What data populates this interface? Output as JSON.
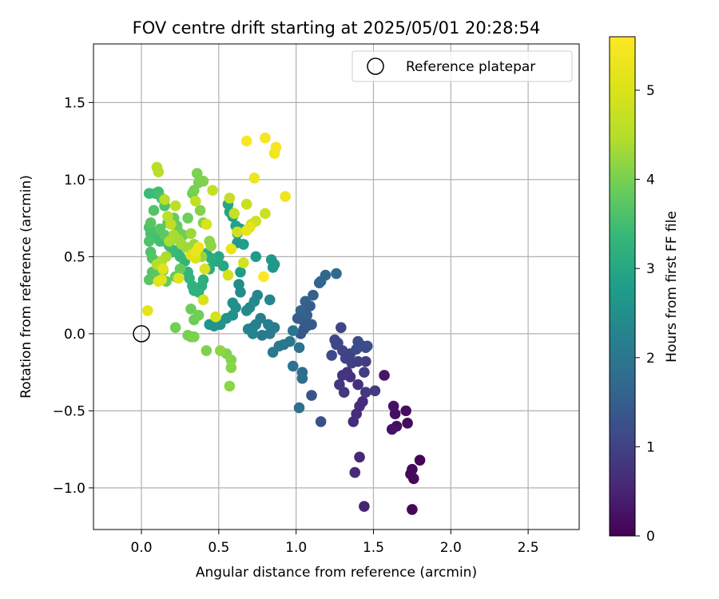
{
  "chart_data": {
    "type": "scatter",
    "title": "FOV centre drift starting at 2025/05/01 20:28:54",
    "xlabel": "Angular distance from reference (arcmin)",
    "ylabel": "Rotation from reference (arcmin)",
    "xlim": [
      -0.31,
      2.83
    ],
    "ylim": [
      -1.27,
      1.88
    ],
    "xticks": [
      0.0,
      0.5,
      1.0,
      1.5,
      2.0,
      2.5
    ],
    "xtick_labels": [
      "0.0",
      "0.5",
      "1.0",
      "1.5",
      "2.0",
      "2.5"
    ],
    "yticks": [
      -1.0,
      -0.5,
      0.0,
      0.5,
      1.0,
      1.5
    ],
    "ytick_labels": [
      "−1.0",
      "−0.5",
      "0.0",
      "0.5",
      "1.0",
      "1.5"
    ],
    "grid": true,
    "legend": {
      "placement": "top-right",
      "entries": [
        "Reference platepar"
      ]
    },
    "reference_point": {
      "name": "Reference platepar",
      "x": 0.0,
      "y": 0.0,
      "marker": "open-circle"
    },
    "colorbar": {
      "label": "Hours from first FF file",
      "range": [
        0,
        5.6
      ],
      "ticks": [
        0,
        1,
        2,
        3,
        4,
        5
      ],
      "colormap": "viridis"
    },
    "points": [
      [
        1.8,
        -0.82,
        0.05
      ],
      [
        1.75,
        -1.14,
        0.08
      ],
      [
        1.76,
        -0.94,
        0.1
      ],
      [
        1.74,
        -0.91,
        0.1
      ],
      [
        1.75,
        -0.88,
        0.12
      ],
      [
        1.72,
        -0.58,
        0.15
      ],
      [
        1.71,
        -0.5,
        0.18
      ],
      [
        1.65,
        -0.6,
        0.2
      ],
      [
        1.64,
        -0.52,
        0.22
      ],
      [
        1.63,
        -0.47,
        0.25
      ],
      [
        1.62,
        -0.62,
        0.25
      ],
      [
        1.57,
        -0.27,
        0.3
      ],
      [
        1.44,
        -1.12,
        0.5
      ],
      [
        1.41,
        -0.8,
        0.55
      ],
      [
        1.38,
        -0.9,
        0.6
      ],
      [
        1.43,
        -0.44,
        0.6
      ],
      [
        1.41,
        -0.47,
        0.62
      ],
      [
        1.37,
        -0.57,
        0.65
      ],
      [
        1.39,
        -0.52,
        0.67
      ],
      [
        1.4,
        -0.33,
        0.7
      ],
      [
        1.35,
        -0.28,
        0.72
      ],
      [
        1.33,
        -0.25,
        0.75
      ],
      [
        1.3,
        -0.27,
        0.78
      ],
      [
        1.31,
        -0.38,
        0.8
      ],
      [
        1.28,
        -0.33,
        0.82
      ],
      [
        1.45,
        -0.38,
        0.85
      ],
      [
        1.51,
        -0.37,
        0.88
      ],
      [
        1.44,
        -0.25,
        0.9
      ],
      [
        1.45,
        -0.18,
        0.92
      ],
      [
        1.4,
        -0.18,
        0.95
      ],
      [
        1.36,
        -0.19,
        0.95
      ],
      [
        1.35,
        -0.13,
        0.98
      ],
      [
        1.32,
        -0.16,
        1.0
      ],
      [
        1.3,
        -0.11,
        1.02
      ],
      [
        1.29,
        0.04,
        1.05
      ],
      [
        1.27,
        -0.06,
        1.05
      ],
      [
        1.26,
        -0.07,
        1.08
      ],
      [
        1.25,
        -0.04,
        1.1
      ],
      [
        1.23,
        -0.14,
        1.12
      ],
      [
        1.39,
        -0.1,
        1.15
      ],
      [
        1.4,
        -0.05,
        1.15
      ],
      [
        1.43,
        -0.08,
        1.18
      ],
      [
        1.45,
        -0.09,
        1.2
      ],
      [
        1.46,
        -0.08,
        1.2
      ],
      [
        1.16,
        -0.57,
        1.25
      ],
      [
        1.1,
        -0.4,
        1.3
      ],
      [
        1.03,
        0.0,
        1.35
      ],
      [
        1.05,
        0.03,
        1.38
      ],
      [
        1.07,
        0.05,
        1.4
      ],
      [
        1.1,
        0.06,
        1.42
      ],
      [
        1.04,
        0.09,
        1.45
      ],
      [
        1.01,
        0.1,
        1.48
      ],
      [
        1.09,
        0.18,
        1.5
      ],
      [
        1.07,
        0.12,
        1.52
      ],
      [
        1.06,
        0.21,
        1.55
      ],
      [
        1.11,
        0.25,
        1.58
      ],
      [
        1.03,
        0.15,
        1.6
      ],
      [
        1.15,
        0.33,
        1.62
      ],
      [
        1.16,
        0.34,
        1.65
      ],
      [
        1.19,
        0.38,
        1.7
      ],
      [
        1.26,
        0.39,
        1.75
      ],
      [
        1.04,
        -0.25,
        1.8
      ],
      [
        1.04,
        -0.29,
        1.82
      ],
      [
        1.02,
        -0.48,
        1.85
      ],
      [
        0.98,
        -0.21,
        1.9
      ],
      [
        1.02,
        -0.09,
        1.92
      ],
      [
        0.98,
        0.02,
        1.95
      ],
      [
        0.96,
        -0.05,
        1.98
      ],
      [
        0.92,
        -0.07,
        2.0
      ],
      [
        0.89,
        -0.08,
        2.02
      ],
      [
        0.85,
        -0.12,
        2.05
      ],
      [
        0.83,
        0.0,
        2.08
      ],
      [
        0.86,
        0.04,
        2.1
      ],
      [
        0.78,
        -0.01,
        2.12
      ],
      [
        0.82,
        0.06,
        2.15
      ],
      [
        0.77,
        0.1,
        2.18
      ],
      [
        0.74,
        0.06,
        2.2
      ],
      [
        0.72,
        0.04,
        2.22
      ],
      [
        0.69,
        0.03,
        2.25
      ],
      [
        0.72,
        0.0,
        2.28
      ],
      [
        0.83,
        0.22,
        2.3
      ],
      [
        0.75,
        0.25,
        2.32
      ],
      [
        0.73,
        0.21,
        2.35
      ],
      [
        0.7,
        0.17,
        2.38
      ],
      [
        0.68,
        0.15,
        2.4
      ],
      [
        0.64,
        0.27,
        2.42
      ],
      [
        0.63,
        0.32,
        2.45
      ],
      [
        0.61,
        0.17,
        2.48
      ],
      [
        0.59,
        0.2,
        2.5
      ],
      [
        0.59,
        0.12,
        2.52
      ],
      [
        0.55,
        0.1,
        2.55
      ],
      [
        0.51,
        0.06,
        2.58
      ],
      [
        0.47,
        0.05,
        2.6
      ],
      [
        0.44,
        0.06,
        2.62
      ],
      [
        0.85,
        0.43,
        2.65
      ],
      [
        0.86,
        0.45,
        2.68
      ],
      [
        0.84,
        0.48,
        2.7
      ],
      [
        0.74,
        0.5,
        2.72
      ],
      [
        0.64,
        0.4,
        2.75
      ],
      [
        0.62,
        0.59,
        2.78
      ],
      [
        0.66,
        0.58,
        2.8
      ],
      [
        0.64,
        0.68,
        2.82
      ],
      [
        0.62,
        0.65,
        2.85
      ],
      [
        0.61,
        0.7,
        2.88
      ],
      [
        0.59,
        0.76,
        2.9
      ],
      [
        0.57,
        0.79,
        2.92
      ],
      [
        0.56,
        0.84,
        2.95
      ],
      [
        0.53,
        0.44,
        2.98
      ],
      [
        0.5,
        0.5,
        3.0
      ],
      [
        0.49,
        0.47,
        3.02
      ],
      [
        0.47,
        0.47,
        3.05
      ],
      [
        0.45,
        0.49,
        3.08
      ],
      [
        0.42,
        0.52,
        3.1
      ],
      [
        0.44,
        0.42,
        3.12
      ],
      [
        0.4,
        0.35,
        3.15
      ],
      [
        0.39,
        0.31,
        3.18
      ],
      [
        0.37,
        0.27,
        3.2
      ],
      [
        0.34,
        0.28,
        3.22
      ],
      [
        0.33,
        0.31,
        3.25
      ],
      [
        0.31,
        0.36,
        3.28
      ],
      [
        0.3,
        0.4,
        3.3
      ],
      [
        0.28,
        0.47,
        3.32
      ],
      [
        0.25,
        0.5,
        3.35
      ],
      [
        0.23,
        0.54,
        3.38
      ],
      [
        0.2,
        0.53,
        3.4
      ],
      [
        0.18,
        0.57,
        3.42
      ],
      [
        0.15,
        0.6,
        3.45
      ],
      [
        0.12,
        0.6,
        3.48
      ],
      [
        0.1,
        0.62,
        3.5
      ],
      [
        0.08,
        0.66,
        3.52
      ],
      [
        0.06,
        0.65,
        3.55
      ],
      [
        0.05,
        0.69,
        3.58
      ],
      [
        0.05,
        0.6,
        3.6
      ],
      [
        0.06,
        0.53,
        3.62
      ],
      [
        0.07,
        0.49,
        3.65
      ],
      [
        0.07,
        0.4,
        3.68
      ],
      [
        0.05,
        0.35,
        3.7
      ],
      [
        0.09,
        0.36,
        3.72
      ],
      [
        0.12,
        0.4,
        3.75
      ],
      [
        0.14,
        0.41,
        3.78
      ],
      [
        0.16,
        0.34,
        3.8
      ],
      [
        0.22,
        0.37,
        3.82
      ],
      [
        0.25,
        0.42,
        3.85
      ],
      [
        0.32,
        0.16,
        3.88
      ],
      [
        0.34,
        0.09,
        3.9
      ],
      [
        0.37,
        0.12,
        3.92
      ],
      [
        0.22,
        0.04,
        3.95
      ],
      [
        0.3,
        -0.01,
        3.98
      ],
      [
        0.32,
        -0.02,
        4.0
      ],
      [
        0.34,
        -0.02,
        4.02
      ],
      [
        0.42,
        -0.11,
        4.05
      ],
      [
        0.55,
        -0.13,
        4.08
      ],
      [
        0.58,
        -0.17,
        4.1
      ],
      [
        0.58,
        -0.22,
        4.12
      ],
      [
        0.57,
        -0.34,
        4.15
      ],
      [
        0.51,
        -0.11,
        4.18
      ],
      [
        0.05,
        0.91,
        3.4
      ],
      [
        0.09,
        0.91,
        3.45
      ],
      [
        0.11,
        0.92,
        3.5
      ],
      [
        0.13,
        0.88,
        3.55
      ],
      [
        0.15,
        0.83,
        3.6
      ],
      [
        0.08,
        0.8,
        3.65
      ],
      [
        0.06,
        0.72,
        3.7
      ],
      [
        0.12,
        0.68,
        3.72
      ],
      [
        0.15,
        0.64,
        3.75
      ],
      [
        0.17,
        0.72,
        3.78
      ],
      [
        0.19,
        0.74,
        3.8
      ],
      [
        0.21,
        0.75,
        3.82
      ],
      [
        0.23,
        0.7,
        3.85
      ],
      [
        0.24,
        0.66,
        3.88
      ],
      [
        0.27,
        0.64,
        3.9
      ],
      [
        0.3,
        0.75,
        3.92
      ],
      [
        0.33,
        0.91,
        3.95
      ],
      [
        0.34,
        0.93,
        3.98
      ],
      [
        0.37,
        0.98,
        4.0
      ],
      [
        0.36,
        1.04,
        4.02
      ],
      [
        0.4,
        0.99,
        4.05
      ],
      [
        0.38,
        0.8,
        4.08
      ],
      [
        0.4,
        0.72,
        4.1
      ],
      [
        0.42,
        0.71,
        4.12
      ],
      [
        0.44,
        0.6,
        4.15
      ],
      [
        0.45,
        0.57,
        4.18
      ],
      [
        0.39,
        0.5,
        4.2
      ],
      [
        0.36,
        0.55,
        4.22
      ],
      [
        0.34,
        0.58,
        4.25
      ],
      [
        0.32,
        0.65,
        4.28
      ],
      [
        0.29,
        0.56,
        4.3
      ],
      [
        0.26,
        0.58,
        4.32
      ],
      [
        0.24,
        0.61,
        4.35
      ],
      [
        0.21,
        0.64,
        4.38
      ],
      [
        0.18,
        0.6,
        4.4
      ],
      [
        0.16,
        0.5,
        4.42
      ],
      [
        0.13,
        0.47,
        4.45
      ],
      [
        0.1,
        0.45,
        4.48
      ],
      [
        0.1,
        1.08,
        4.5
      ],
      [
        0.11,
        1.05,
        4.52
      ],
      [
        0.15,
        0.87,
        4.55
      ],
      [
        0.17,
        0.76,
        4.58
      ],
      [
        0.19,
        0.71,
        4.6
      ],
      [
        0.22,
        0.83,
        4.62
      ],
      [
        0.35,
        0.86,
        4.65
      ],
      [
        0.46,
        0.93,
        4.68
      ],
      [
        0.57,
        0.88,
        4.7
      ],
      [
        0.6,
        0.78,
        4.72
      ],
      [
        0.68,
        0.84,
        4.75
      ],
      [
        0.8,
        0.78,
        4.78
      ],
      [
        0.74,
        0.73,
        4.8
      ],
      [
        0.71,
        0.71,
        4.82
      ],
      [
        0.62,
        0.66,
        4.85
      ],
      [
        0.66,
        0.46,
        4.88
      ],
      [
        0.56,
        0.38,
        4.9
      ],
      [
        0.48,
        0.11,
        4.92
      ],
      [
        0.4,
        0.22,
        4.95
      ],
      [
        0.41,
        0.42,
        4.98
      ],
      [
        0.42,
        0.71,
        5.0
      ],
      [
        0.35,
        0.49,
        5.02
      ],
      [
        0.32,
        0.51,
        5.05
      ],
      [
        0.24,
        0.36,
        5.08
      ],
      [
        0.14,
        0.42,
        5.1
      ],
      [
        0.11,
        0.34,
        5.12
      ],
      [
        0.04,
        0.15,
        5.15
      ],
      [
        0.13,
        0.35,
        5.18
      ],
      [
        0.68,
        0.67,
        5.2
      ],
      [
        0.7,
        0.69,
        5.22
      ],
      [
        0.58,
        0.55,
        5.25
      ],
      [
        0.35,
        0.53,
        5.28
      ],
      [
        0.37,
        0.56,
        5.3
      ],
      [
        0.73,
        1.01,
        5.32
      ],
      [
        0.93,
        0.89,
        5.35
      ],
      [
        0.86,
        1.17,
        5.4
      ],
      [
        0.87,
        1.21,
        5.45
      ],
      [
        0.8,
        1.27,
        5.5
      ],
      [
        0.68,
        1.25,
        5.55
      ],
      [
        0.79,
        0.37,
        5.6
      ]
    ]
  }
}
